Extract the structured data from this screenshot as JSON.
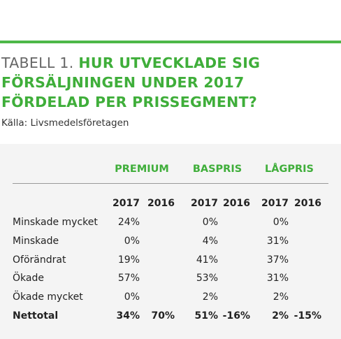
{
  "header": {
    "label": "TABELL 1.",
    "title": "HUR UTVECKLADE SIG FÖRSÄLJNINGEN UNDER 2017 FÖRDELAD PER PRISSEGMENT?",
    "source": "Källa: Livsmedelsföretagen"
  },
  "table": {
    "groups": [
      "PREMIUM",
      "BASPRIS",
      "LÅGPRIS"
    ],
    "years": [
      "2017",
      "2016",
      "2017",
      "2016",
      "2017",
      "2016"
    ],
    "rows": [
      {
        "label": "Minskade mycket",
        "values": [
          "24%",
          null,
          "0%",
          null,
          "0%",
          null
        ]
      },
      {
        "label": "Minskade",
        "values": [
          "0%",
          null,
          "4%",
          null,
          "31%",
          null
        ]
      },
      {
        "label": "Oförändrat",
        "values": [
          "19%",
          null,
          "41%",
          null,
          "37%",
          null
        ]
      },
      {
        "label": "Ökade",
        "values": [
          "57%",
          null,
          "53%",
          null,
          "31%",
          null
        ]
      },
      {
        "label": "Ökade mycket",
        "values": [
          "0%",
          null,
          "2%",
          null,
          "2%",
          null
        ]
      },
      {
        "label": "Nettotal",
        "values": [
          "34%",
          "70%",
          "51%",
          "-16%",
          "2%",
          "-15%"
        ]
      }
    ]
  }
}
